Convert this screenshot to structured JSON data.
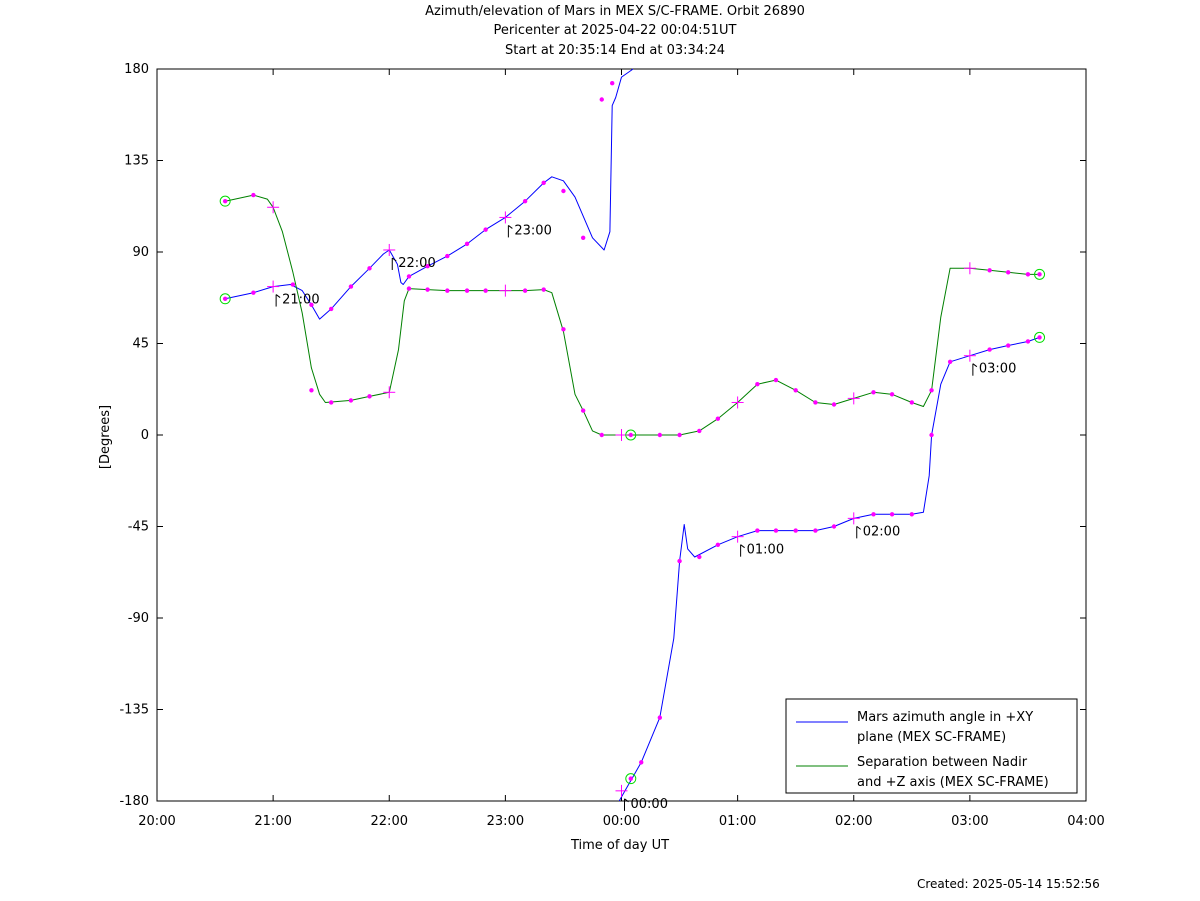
{
  "chart_data": {
    "type": "line",
    "title": "Azimuth/elevation of Mars in MEX S/C-FRAME.  Orbit 26890",
    "subtitle_lines": [
      "Pericenter at 2025-04-22 00:04:51UT",
      "Start at 20:35:14 End at 03:34:24"
    ],
    "xlabel": "Time of day UT",
    "ylabel": "[Degrees]",
    "x_unit": "hours since 20:00 UT",
    "xlim": [
      0,
      8
    ],
    "ylim": [
      -180,
      180
    ],
    "x_tick_labels": [
      "20:00",
      "21:00",
      "22:00",
      "23:00",
      "00:00",
      "01:00",
      "02:00",
      "03:00",
      "04:00"
    ],
    "y_ticks": [
      -180,
      -135,
      -90,
      -45,
      0,
      45,
      90,
      135,
      180
    ],
    "legend_position": "bottom-right",
    "series": [
      {
        "name": "Mars azimuth angle in +XY plane (MEX SC-FRAME)",
        "legend_lines": [
          "Mars azimuth angle in +XY",
          "plane (MEX SC-FRAME)"
        ],
        "color": "#0000ff",
        "points": [
          [
            0.587,
            67
          ],
          [
            0.83,
            70
          ],
          [
            1.0,
            73
          ],
          [
            1.15,
            74
          ],
          [
            1.25,
            71
          ],
          [
            1.33,
            64
          ],
          [
            1.4,
            57
          ],
          [
            1.5,
            62
          ],
          [
            1.67,
            73
          ],
          [
            1.83,
            82
          ],
          [
            1.95,
            89
          ],
          [
            2.0,
            91
          ],
          [
            2.07,
            84
          ],
          [
            2.1,
            75
          ],
          [
            2.12,
            74
          ],
          [
            2.17,
            78
          ],
          [
            2.33,
            83
          ],
          [
            2.5,
            88
          ],
          [
            2.67,
            94
          ],
          [
            2.83,
            101
          ],
          [
            3.0,
            107
          ],
          [
            3.17,
            115
          ],
          [
            3.33,
            124
          ],
          [
            3.4,
            127
          ],
          [
            3.5,
            125
          ],
          [
            3.6,
            117
          ],
          [
            3.75,
            97
          ],
          [
            3.85,
            91
          ],
          [
            3.9,
            100
          ],
          [
            3.92,
            162
          ],
          [
            3.95,
            166
          ],
          [
            4.0,
            176
          ],
          [
            4.1,
            180
          ],
          null,
          [
            3.98,
            -180
          ],
          [
            4.03,
            -175
          ],
          [
            4.1,
            -168
          ],
          [
            4.17,
            -161
          ],
          [
            4.33,
            -139
          ],
          [
            4.45,
            -100
          ],
          [
            4.5,
            -62
          ],
          [
            4.54,
            -44
          ],
          [
            4.57,
            -56
          ],
          [
            4.63,
            -60
          ],
          [
            4.83,
            -54
          ],
          [
            5.0,
            -50
          ],
          [
            5.17,
            -47
          ],
          [
            5.33,
            -47
          ],
          [
            5.5,
            -47
          ],
          [
            5.67,
            -47
          ],
          [
            5.83,
            -45
          ],
          [
            6.0,
            -41
          ],
          [
            6.17,
            -39
          ],
          [
            6.33,
            -39
          ],
          [
            6.5,
            -39
          ],
          [
            6.6,
            -38
          ],
          [
            6.65,
            -20
          ],
          [
            6.67,
            0
          ],
          [
            6.75,
            25
          ],
          [
            6.83,
            36
          ],
          [
            7.0,
            39
          ],
          [
            7.17,
            42
          ],
          [
            7.33,
            44
          ],
          [
            7.5,
            46
          ],
          [
            7.6,
            48
          ]
        ]
      },
      {
        "name": "Separation between Nadir and +Z axis (MEX SC-FRAME)",
        "legend_lines": [
          "Separation between Nadir",
          "and +Z axis (MEX SC-FRAME)"
        ],
        "color": "#008000",
        "points": [
          [
            0.587,
            115
          ],
          [
            0.83,
            118
          ],
          [
            0.95,
            116
          ],
          [
            1.0,
            112
          ],
          [
            1.08,
            100
          ],
          [
            1.17,
            80
          ],
          [
            1.25,
            60
          ],
          [
            1.33,
            33
          ],
          [
            1.4,
            20
          ],
          [
            1.45,
            16
          ],
          [
            1.67,
            17
          ],
          [
            1.83,
            19
          ],
          [
            2.0,
            21
          ],
          [
            2.08,
            42
          ],
          [
            2.13,
            66
          ],
          [
            2.17,
            72
          ],
          [
            2.33,
            71.5
          ],
          [
            2.5,
            71
          ],
          [
            2.67,
            71
          ],
          [
            2.83,
            71
          ],
          [
            3.0,
            71
          ],
          [
            3.17,
            71
          ],
          [
            3.33,
            71.5
          ],
          [
            3.4,
            70
          ],
          [
            3.5,
            51
          ],
          [
            3.6,
            20
          ],
          [
            3.67,
            12
          ],
          [
            3.75,
            2
          ],
          [
            3.83,
            0
          ],
          [
            4.0,
            0
          ],
          [
            4.17,
            0
          ],
          [
            4.33,
            0
          ],
          [
            4.5,
            0
          ],
          [
            4.67,
            2
          ],
          [
            4.83,
            8
          ],
          [
            5.0,
            16
          ],
          [
            5.17,
            25
          ],
          [
            5.33,
            27
          ],
          [
            5.5,
            22
          ],
          [
            5.67,
            16
          ],
          [
            5.83,
            15
          ],
          [
            6.0,
            18
          ],
          [
            6.17,
            21
          ],
          [
            6.33,
            20
          ],
          [
            6.5,
            16
          ],
          [
            6.6,
            14
          ],
          [
            6.67,
            22
          ],
          [
            6.75,
            58
          ],
          [
            6.83,
            82
          ],
          [
            7.0,
            82
          ],
          [
            7.17,
            81
          ],
          [
            7.33,
            80
          ],
          [
            7.5,
            79
          ],
          [
            7.6,
            79
          ]
        ]
      }
    ],
    "dot_markers": [
      [
        0.83,
        70
      ],
      [
        1.17,
        74
      ],
      [
        1.33,
        64
      ],
      [
        1.5,
        62
      ],
      [
        1.67,
        73
      ],
      [
        1.83,
        82
      ],
      [
        2.17,
        78
      ],
      [
        2.33,
        83
      ],
      [
        2.5,
        88
      ],
      [
        2.67,
        94
      ],
      [
        2.83,
        101
      ],
      [
        3.17,
        115
      ],
      [
        3.33,
        124
      ],
      [
        3.5,
        120
      ],
      [
        3.67,
        97
      ],
      [
        3.83,
        165
      ],
      [
        3.92,
        173
      ],
      [
        4.17,
        -161
      ],
      [
        4.33,
        -139
      ],
      [
        4.5,
        -62
      ],
      [
        4.67,
        -60
      ],
      [
        4.83,
        -54
      ],
      [
        5.17,
        -47
      ],
      [
        5.33,
        -47
      ],
      [
        5.5,
        -47
      ],
      [
        5.67,
        -47
      ],
      [
        5.83,
        -45
      ],
      [
        6.17,
        -39
      ],
      [
        6.33,
        -39
      ],
      [
        6.5,
        -39
      ],
      [
        6.67,
        0
      ],
      [
        6.83,
        36
      ],
      [
        7.17,
        42
      ],
      [
        7.33,
        44
      ],
      [
        7.5,
        46
      ],
      [
        0.83,
        118
      ],
      [
        1.33,
        22
      ],
      [
        1.5,
        16
      ],
      [
        1.67,
        17
      ],
      [
        1.83,
        19
      ],
      [
        2.17,
        72
      ],
      [
        2.33,
        71.5
      ],
      [
        2.5,
        71
      ],
      [
        2.67,
        71
      ],
      [
        2.83,
        71
      ],
      [
        3.17,
        71
      ],
      [
        3.33,
        71.5
      ],
      [
        3.5,
        52
      ],
      [
        3.67,
        12
      ],
      [
        3.83,
        0
      ],
      [
        4.33,
        0
      ],
      [
        4.5,
        0
      ],
      [
        4.67,
        2
      ],
      [
        4.83,
        8
      ],
      [
        5.17,
        25
      ],
      [
        5.33,
        27
      ],
      [
        5.5,
        22
      ],
      [
        5.67,
        16
      ],
      [
        5.83,
        15
      ],
      [
        6.17,
        21
      ],
      [
        6.33,
        20
      ],
      [
        6.5,
        16
      ],
      [
        6.67,
        22
      ],
      [
        7.17,
        81
      ],
      [
        7.33,
        80
      ],
      [
        7.5,
        79
      ]
    ],
    "cross_markers": [
      [
        1.0,
        73
      ],
      [
        2.0,
        91
      ],
      [
        3.0,
        107
      ],
      [
        4.0,
        -175
      ],
      [
        5.0,
        -50
      ],
      [
        6.0,
        -41
      ],
      [
        7.0,
        39
      ],
      [
        1.0,
        112
      ],
      [
        2.0,
        21
      ],
      [
        3.0,
        71
      ],
      [
        4.0,
        0
      ],
      [
        5.0,
        16
      ],
      [
        6.0,
        18
      ],
      [
        7.0,
        82
      ]
    ],
    "circle_markers": [
      [
        0.587,
        67
      ],
      [
        7.6,
        48
      ],
      [
        0.587,
        115
      ],
      [
        7.6,
        79
      ],
      [
        4.08,
        -169
      ],
      [
        4.08,
        0
      ]
    ],
    "hour_annotations": [
      {
        "label": "21:00",
        "x": 1.0,
        "y": 73
      },
      {
        "label": "22:00",
        "x": 2.0,
        "y": 91
      },
      {
        "label": "23:00",
        "x": 3.0,
        "y": 107
      },
      {
        "label": "00:00",
        "x": 4.0,
        "y": -175
      },
      {
        "label": "01:00",
        "x": 5.0,
        "y": -50
      },
      {
        "label": "02:00",
        "x": 6.0,
        "y": -41
      },
      {
        "label": "03:00",
        "x": 7.0,
        "y": 39
      }
    ]
  },
  "footer": {
    "created": "Created: 2025-05-14 15:52:56"
  }
}
